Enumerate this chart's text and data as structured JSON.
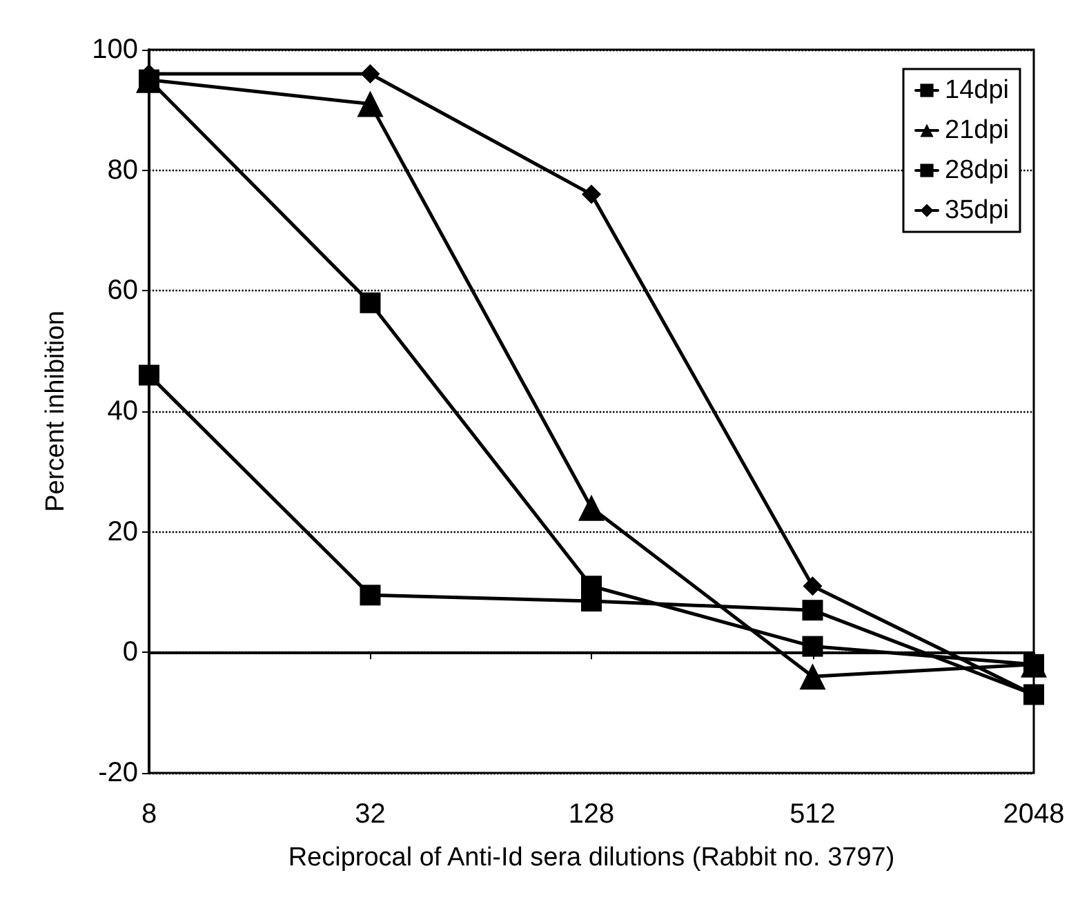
{
  "chart_data": {
    "type": "line",
    "xlabel": "Reciprocal of Anti-Id sera dilutions (Rabbit no. 3797)",
    "ylabel": "Percent inhibition",
    "categories": [
      "8",
      "32",
      "128",
      "512",
      "2048"
    ],
    "series": [
      {
        "name": "14dpi",
        "color": "#000000",
        "marker": "square",
        "values": [
          46,
          9.5,
          8.5,
          7,
          -7
        ]
      },
      {
        "name": "21dpi",
        "color": "#000000",
        "marker": "triangle",
        "values": [
          95,
          91,
          24,
          -4,
          -2
        ]
      },
      {
        "name": "28dpi",
        "color": "#000000",
        "marker": "square",
        "values": [
          95,
          58,
          11,
          1,
          -2
        ]
      },
      {
        "name": "35dpi",
        "color": "#000000",
        "marker": "diamond",
        "values": [
          96,
          96,
          76,
          11,
          -7
        ]
      }
    ],
    "ylim": [
      -20,
      100
    ],
    "yticks": [
      -20,
      0,
      20,
      40,
      60,
      80,
      100
    ],
    "grid": "y",
    "legend": "top right",
    "line_style": "solid"
  }
}
